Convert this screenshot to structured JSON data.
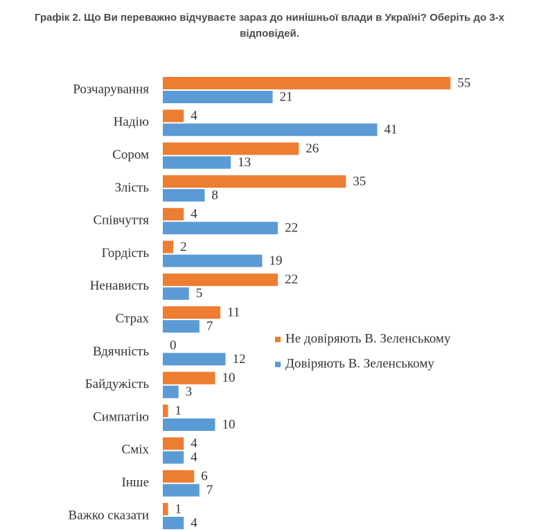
{
  "chart_data": {
    "type": "bar",
    "orientation": "horizontal",
    "title": "Графік 2. Що Ви переважно відчуваєте зараз до нинішньої влади в Україні? Оберіть до 3-х відповідей.",
    "categories": [
      "Розчарування",
      "Надію",
      "Сором",
      "Злість",
      "Співчуття",
      "Гордість",
      "Ненависть",
      "Страх",
      "Вдячність",
      "Байдужість",
      "Симпатію",
      "Сміх",
      "Інше",
      "Важко сказати"
    ],
    "series": [
      {
        "name": "Не довіряють В. Зеленському",
        "color": "#ed7d31",
        "values": [
          55,
          4,
          26,
          35,
          4,
          2,
          22,
          11,
          0,
          10,
          1,
          4,
          6,
          1
        ]
      },
      {
        "name": "Довіряють В. Зеленському",
        "color": "#5b9bd5",
        "values": [
          21,
          41,
          13,
          8,
          22,
          19,
          5,
          7,
          12,
          3,
          10,
          4,
          7,
          4
        ]
      }
    ],
    "legend": "right"
  }
}
